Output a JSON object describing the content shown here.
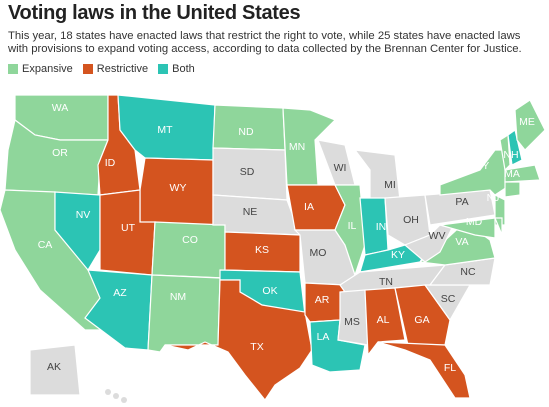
{
  "header": {
    "title": "Voting laws in the United States",
    "subtitle": "This year, 18 states have enacted laws that restrict the right to vote, while 25 states have enacted laws with provisions to expand voting access, according to data collected by the Brennan Center for Justice."
  },
  "legend": [
    {
      "name": "Expansive",
      "color": "#8fd69b"
    },
    {
      "name": "Restrictive",
      "color": "#d4541f"
    },
    {
      "name": "Both",
      "color": "#2cc4b4"
    }
  ],
  "map": {
    "default_color": "#dcdcdc",
    "states": [
      {
        "abbr": "WA",
        "status": "Expansive"
      },
      {
        "abbr": "OR",
        "status": "Expansive"
      },
      {
        "abbr": "CA",
        "status": "Expansive"
      },
      {
        "abbr": "NV",
        "status": "Both"
      },
      {
        "abbr": "ID",
        "status": "Restrictive"
      },
      {
        "abbr": "MT",
        "status": "Both"
      },
      {
        "abbr": "WY",
        "status": "Restrictive"
      },
      {
        "abbr": "UT",
        "status": "Restrictive"
      },
      {
        "abbr": "AZ",
        "status": "Both"
      },
      {
        "abbr": "CO",
        "status": "Expansive"
      },
      {
        "abbr": "NM",
        "status": "Expansive"
      },
      {
        "abbr": "ND",
        "status": "Expansive"
      },
      {
        "abbr": "SD"
      },
      {
        "abbr": "NE"
      },
      {
        "abbr": "KS",
        "status": "Restrictive"
      },
      {
        "abbr": "OK",
        "status": "Both"
      },
      {
        "abbr": "TX",
        "status": "Restrictive"
      },
      {
        "abbr": "MN",
        "status": "Expansive"
      },
      {
        "abbr": "IA",
        "status": "Restrictive"
      },
      {
        "abbr": "MO"
      },
      {
        "abbr": "AR",
        "status": "Restrictive"
      },
      {
        "abbr": "LA",
        "status": "Both"
      },
      {
        "abbr": "WI"
      },
      {
        "abbr": "IL",
        "status": "Expansive"
      },
      {
        "abbr": "MI"
      },
      {
        "abbr": "IN",
        "status": "Both"
      },
      {
        "abbr": "OH"
      },
      {
        "abbr": "KY",
        "status": "Both"
      },
      {
        "abbr": "TN"
      },
      {
        "abbr": "MS"
      },
      {
        "abbr": "AL",
        "status": "Restrictive"
      },
      {
        "abbr": "GA",
        "status": "Restrictive"
      },
      {
        "abbr": "FL",
        "status": "Restrictive"
      },
      {
        "abbr": "SC"
      },
      {
        "abbr": "NC"
      },
      {
        "abbr": "VA",
        "status": "Expansive"
      },
      {
        "abbr": "WV"
      },
      {
        "abbr": "PA"
      },
      {
        "abbr": "NY",
        "status": "Expansive"
      },
      {
        "abbr": "NJ",
        "status": "Expansive"
      },
      {
        "abbr": "MD",
        "status": "Expansive"
      },
      {
        "status": "Expansive"
      },
      {
        "status": "Expansive"
      },
      {
        "abbr": "NH",
        "status": "Both"
      },
      {
        "abbr": "ME",
        "status": "Expansive"
      },
      {
        "abbr": "MA",
        "status": "Expansive"
      },
      {
        "status": "Expansive"
      },
      {
        "abbr": "AK"
      }
    ]
  }
}
